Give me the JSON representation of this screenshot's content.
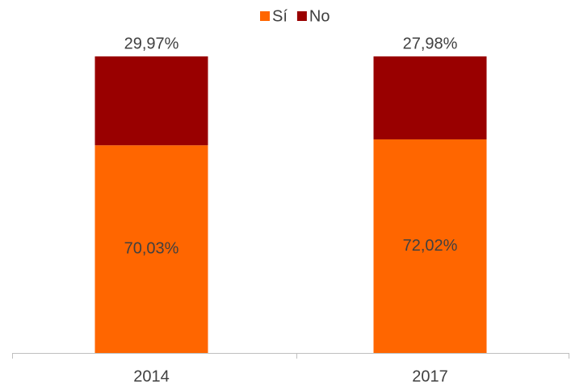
{
  "chart_data": {
    "type": "bar",
    "stacked": true,
    "categories": [
      "2014",
      "2017"
    ],
    "series": [
      {
        "name": "Sí",
        "color": "#ff6600",
        "values": [
          70.03,
          72.02
        ],
        "value_labels": [
          "70,03%",
          "72,02%"
        ]
      },
      {
        "name": "No",
        "color": "#990000",
        "values": [
          29.97,
          27.98
        ],
        "value_labels": [
          "29,97%",
          "27,98%"
        ]
      }
    ],
    "ylim": [
      0,
      100
    ],
    "legend": "top"
  }
}
